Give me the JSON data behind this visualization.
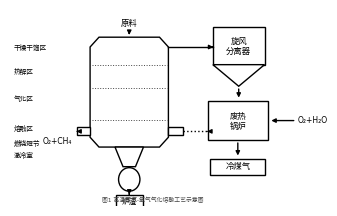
{
  "background": "#ffffff",
  "title": "图1 高温蒸汽-氧气气化熔融工艺示意图",
  "title_fontsize": 5,
  "labels_left": [
    "干燥干馏区",
    "热解区",
    "气化区",
    "熔融区",
    "燃烧短节",
    "激冷室"
  ],
  "label_yuanliao": "原料",
  "label_xuanfeng": "旋风\n分离器",
  "label_feireguo": "废热\n锅炉",
  "label_lengmeiqi": "冷煤气",
  "label_luzha": "炉渣",
  "label_o2h2o": "O₂+H₂O",
  "label_o2ch4": "O₂+CH₄",
  "text_color": "#000000",
  "line_color": "#000000",
  "dot_line_color": "#555555"
}
